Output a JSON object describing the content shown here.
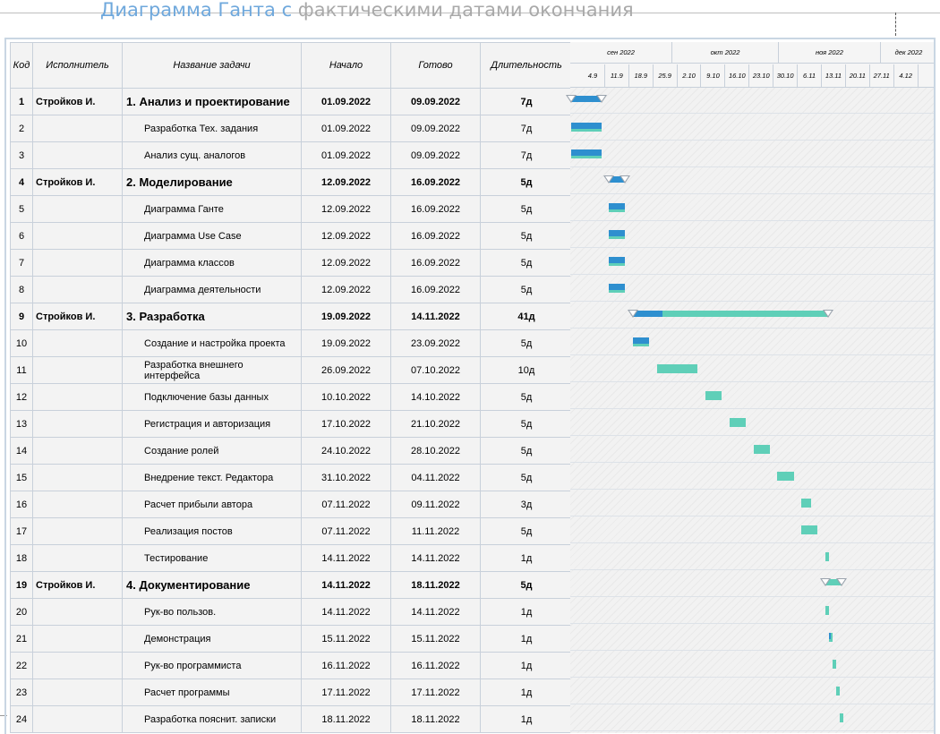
{
  "title": {
    "part1": "Диаграмма Ганта с",
    "part2": " фактическими датами окончания"
  },
  "columns": {
    "code": "Код",
    "assignee": "Исполнитель",
    "name": "Название задачи",
    "start": "Начало",
    "finish": "Готово",
    "duration": "Длительность"
  },
  "timeline": {
    "months": [
      "сен 2022",
      "окт 2022",
      "ноя 2022",
      "дек 2022"
    ],
    "weeks": [
      "4.9",
      "11.9",
      "18.9",
      "25.9",
      "2.10",
      "9.10",
      "16.10",
      "23.10",
      "30.10",
      "6.11",
      "13.11",
      "20.11",
      "27.11",
      "4.12"
    ],
    "range_start": "2022-09-01"
  },
  "colors": {
    "progress": "#2e8fcf",
    "remaining": "#5fcfb8",
    "grid": "#c8d0da",
    "title": "#6fa8dc"
  },
  "tasks": [
    {
      "code": "1",
      "assignee": "Стройков И.",
      "name": "1. Анализ и проектирование",
      "start": "01.09.2022",
      "finish": "09.09.2022",
      "duration": "7д",
      "summary": true,
      "progress": 1.0
    },
    {
      "code": "2",
      "assignee": "",
      "name": "Разработка Тех. задания",
      "start": "01.09.2022",
      "finish": "09.09.2022",
      "duration": "7д",
      "summary": false,
      "progress": 1.0
    },
    {
      "code": "3",
      "assignee": "",
      "name": "Анализ сущ. аналогов",
      "start": "01.09.2022",
      "finish": "09.09.2022",
      "duration": "7д",
      "summary": false,
      "progress": 1.0
    },
    {
      "code": "4",
      "assignee": "Стройков И.",
      "name": "2. Моделирование",
      "start": "12.09.2022",
      "finish": "16.09.2022",
      "duration": "5д",
      "summary": true,
      "progress": 1.0
    },
    {
      "code": "5",
      "assignee": "",
      "name": "Диаграмма Ганте",
      "start": "12.09.2022",
      "finish": "16.09.2022",
      "duration": "5д",
      "summary": false,
      "progress": 1.0
    },
    {
      "code": "6",
      "assignee": "",
      "name": "Диаграмма Use Case",
      "start": "12.09.2022",
      "finish": "16.09.2022",
      "duration": "5д",
      "summary": false,
      "progress": 1.0
    },
    {
      "code": "7",
      "assignee": "",
      "name": "Диаграмма классов",
      "start": "12.09.2022",
      "finish": "16.09.2022",
      "duration": "5д",
      "summary": false,
      "progress": 1.0
    },
    {
      "code": "8",
      "assignee": "",
      "name": "Диаграмма деятельности",
      "start": "12.09.2022",
      "finish": "16.09.2022",
      "duration": "5д",
      "summary": false,
      "progress": 1.0
    },
    {
      "code": "9",
      "assignee": "Стройков И.",
      "name": "3. Разработка",
      "start": "19.09.2022",
      "finish": "14.11.2022",
      "duration": "41д",
      "summary": true,
      "progress": 0.15
    },
    {
      "code": "10",
      "assignee": "",
      "name": "Создание и настройка проекта",
      "start": "19.09.2022",
      "finish": "23.09.2022",
      "duration": "5д",
      "summary": false,
      "progress": 1.0
    },
    {
      "code": "11",
      "assignee": "",
      "name": "Разработка внешнего интерфейса",
      "start": "26.09.2022",
      "finish": "07.10.2022",
      "duration": "10д",
      "summary": false,
      "progress": 0
    },
    {
      "code": "12",
      "assignee": "",
      "name": "Подключение базы данных",
      "start": "10.10.2022",
      "finish": "14.10.2022",
      "duration": "5д",
      "summary": false,
      "progress": 0
    },
    {
      "code": "13",
      "assignee": "",
      "name": "Регистрация и авторизация",
      "start": "17.10.2022",
      "finish": "21.10.2022",
      "duration": "5д",
      "summary": false,
      "progress": 0
    },
    {
      "code": "14",
      "assignee": "",
      "name": "Создание ролей",
      "start": "24.10.2022",
      "finish": "28.10.2022",
      "duration": "5д",
      "summary": false,
      "progress": 0
    },
    {
      "code": "15",
      "assignee": "",
      "name": "Внедрение текст. Редактора",
      "start": "31.10.2022",
      "finish": "04.11.2022",
      "duration": "5д",
      "summary": false,
      "progress": 0
    },
    {
      "code": "16",
      "assignee": "",
      "name": "Расчет прибыли автора",
      "start": "07.11.2022",
      "finish": "09.11.2022",
      "duration": "3д",
      "summary": false,
      "progress": 0
    },
    {
      "code": "17",
      "assignee": "",
      "name": "Реализация постов",
      "start": "07.11.2022",
      "finish": "11.11.2022",
      "duration": "5д",
      "summary": false,
      "progress": 0
    },
    {
      "code": "18",
      "assignee": "",
      "name": "Тестирование",
      "start": "14.11.2022",
      "finish": "14.11.2022",
      "duration": "1д",
      "summary": false,
      "progress": 0
    },
    {
      "code": "19",
      "assignee": "Стройков И.",
      "name": "4. Документирование",
      "start": "14.11.2022",
      "finish": "18.11.2022",
      "duration": "5д",
      "summary": true,
      "progress": 0
    },
    {
      "code": "20",
      "assignee": "",
      "name": "Рук-во пользов.",
      "start": "14.11.2022",
      "finish": "14.11.2022",
      "duration": "1д",
      "summary": false,
      "progress": 0
    },
    {
      "code": "21",
      "assignee": "",
      "name": "Демонстрация",
      "start": "15.11.2022",
      "finish": "15.11.2022",
      "duration": "1д",
      "summary": false,
      "progress": 0.5
    },
    {
      "code": "22",
      "assignee": "",
      "name": "Рук-во программиста",
      "start": "16.11.2022",
      "finish": "16.11.2022",
      "duration": "1д",
      "summary": false,
      "progress": 0
    },
    {
      "code": "23",
      "assignee": "",
      "name": "Расчет программы",
      "start": "17.11.2022",
      "finish": "17.11.2022",
      "duration": "1д",
      "summary": false,
      "progress": 0
    },
    {
      "code": "24",
      "assignee": "",
      "name": "Разработка пояснит. записки",
      "start": "18.11.2022",
      "finish": "18.11.2022",
      "duration": "1д",
      "summary": false,
      "progress": 0
    }
  ]
}
